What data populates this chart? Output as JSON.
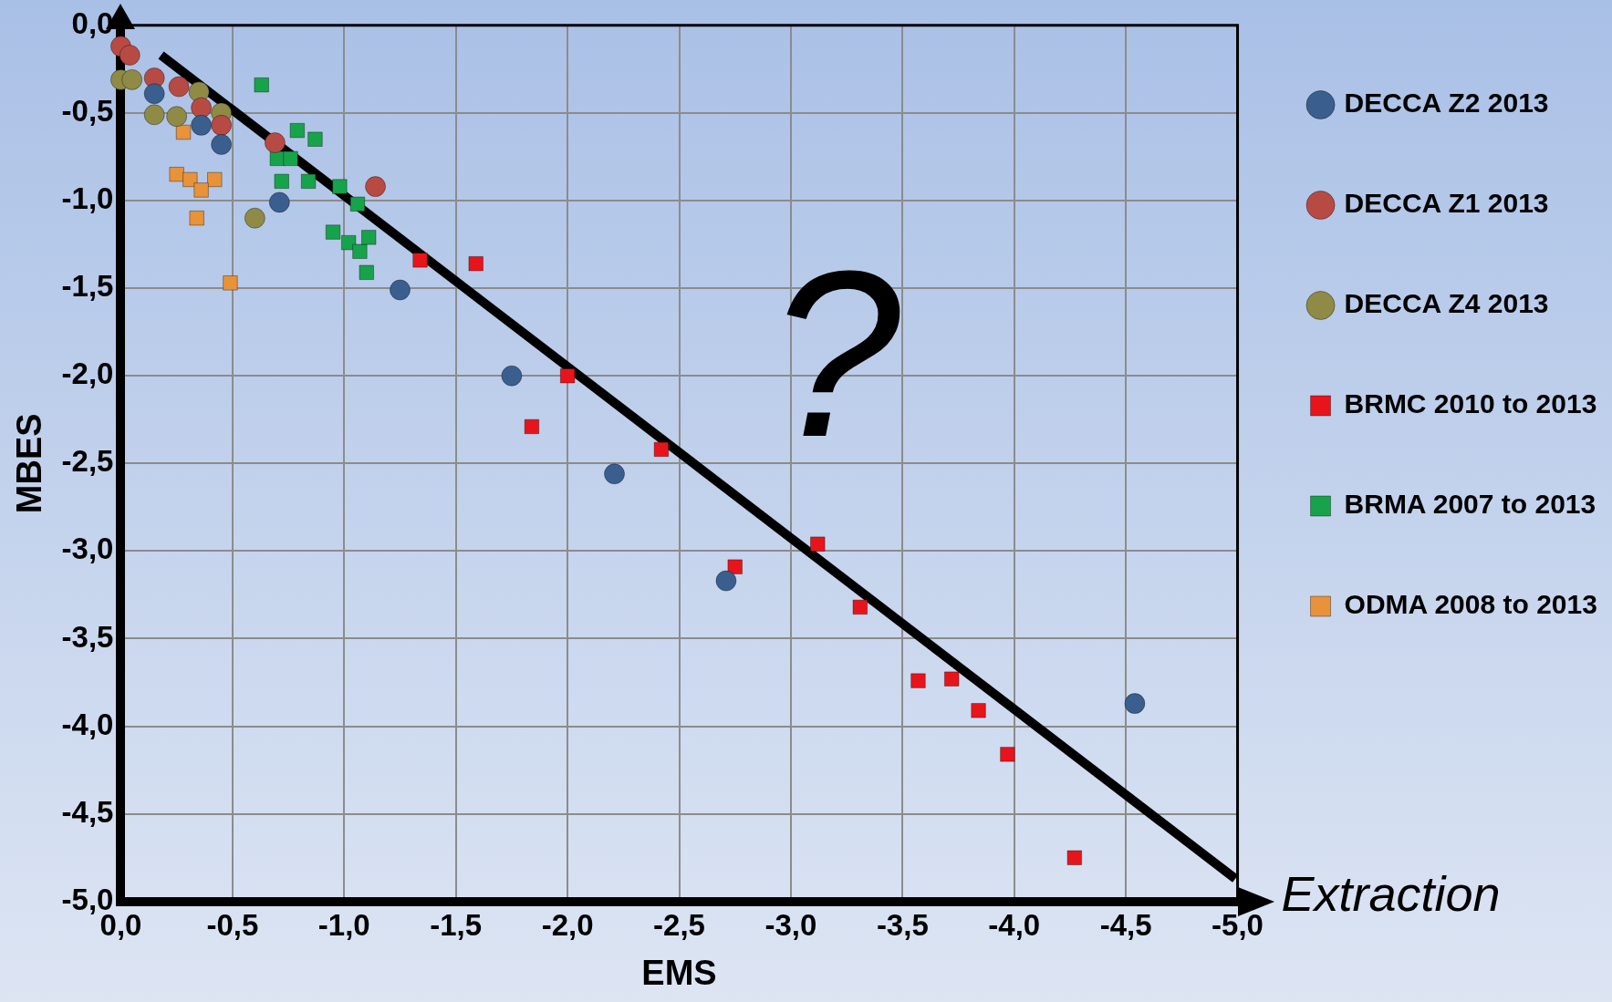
{
  "chart_data": {
    "type": "scatter",
    "xlabel": "EMS",
    "ylabel": "MBES",
    "annotations": [
      "Extraction",
      "?"
    ],
    "xlim": [
      0,
      -5
    ],
    "ylim": [
      -5,
      0
    ],
    "xticks": [
      {
        "value": 0,
        "label": "0,0"
      },
      {
        "value": -0.5,
        "label": "-0,5"
      },
      {
        "value": -1,
        "label": "-1,0"
      },
      {
        "value": -1.5,
        "label": "-1,5"
      },
      {
        "value": -2,
        "label": "-2,0"
      },
      {
        "value": -2.5,
        "label": "-2,5"
      },
      {
        "value": -3,
        "label": "-3,0"
      },
      {
        "value": -3.5,
        "label": "-3,5"
      },
      {
        "value": -4,
        "label": "-4,0"
      },
      {
        "value": -4.5,
        "label": "-4,5"
      },
      {
        "value": -5,
        "label": "-5,0"
      }
    ],
    "yticks": [
      {
        "value": 0,
        "label": "0,0"
      },
      {
        "value": -0.5,
        "label": "-0,5"
      },
      {
        "value": -1,
        "label": "-1,0"
      },
      {
        "value": -1.5,
        "label": "-1,5"
      },
      {
        "value": -2,
        "label": "-2,0"
      },
      {
        "value": -2.5,
        "label": "-2,5"
      },
      {
        "value": -3,
        "label": "-3,0"
      },
      {
        "value": -3.5,
        "label": "-3,5"
      },
      {
        "value": -4,
        "label": "-4,0"
      },
      {
        "value": -4.5,
        "label": "-4,5"
      },
      {
        "value": -5,
        "label": "-5,0"
      }
    ],
    "grid": true,
    "legend": "right",
    "series": [
      {
        "name": "DECCA Z2 2013",
        "color": "#3a5f8f",
        "marker": "circle",
        "x": [
          -0.15,
          -0.36,
          -0.45,
          -0.71,
          -1.25,
          -1.75,
          -2.21,
          -2.71,
          -4.54
        ],
        "values": [
          -0.39,
          -0.57,
          -0.68,
          -1.01,
          -1.51,
          -2.0,
          -2.56,
          -3.17,
          -3.87
        ]
      },
      {
        "name": "DECCA Z1 2013",
        "color": "#b84a44",
        "marker": "circle",
        "x": [
          0,
          -0.04,
          -0.15,
          -0.26,
          -0.36,
          -0.45,
          -0.69,
          -1.14
        ],
        "values": [
          -0.12,
          -0.17,
          -0.3,
          -0.35,
          -0.47,
          -0.57,
          -0.67,
          -0.92
        ]
      },
      {
        "name": "DECCA Z4 2013",
        "color": "#8f8a45",
        "marker": "circle",
        "x": [
          0,
          -0.05,
          -0.15,
          -0.25,
          -0.35,
          -0.45,
          -0.6
        ],
        "values": [
          -0.31,
          -0.31,
          -0.51,
          -0.52,
          -0.38,
          -0.5,
          -1.1
        ]
      },
      {
        "name": "BRMC 2010 to 2013",
        "color": "#e8141c",
        "marker": "square",
        "x": [
          -1.34,
          -1.59,
          -2.0,
          -1.84,
          -2.42,
          -2.75,
          -3.12,
          -3.31,
          -3.57,
          -3.72,
          -3.84,
          -3.97,
          -4.27
        ],
        "values": [
          -1.34,
          -1.36,
          -2.0,
          -2.29,
          -2.42,
          -3.09,
          -2.96,
          -3.32,
          -3.74,
          -3.73,
          -3.91,
          -4.16,
          -4.75
        ]
      },
      {
        "name": "BRMA 2007 to 2013",
        "color": "#16a34a",
        "marker": "square",
        "x": [
          -0.63,
          -0.79,
          -0.87,
          -0.7,
          -0.76,
          -0.72,
          -0.84,
          -0.98,
          -1.06,
          -0.95,
          -1.02,
          -1.07,
          -1.11,
          -1.1
        ],
        "values": [
          -0.34,
          -0.6,
          -0.65,
          -0.76,
          -0.76,
          -0.89,
          -0.89,
          -0.92,
          -1.02,
          -1.18,
          -1.24,
          -1.29,
          -1.21,
          -1.41
        ]
      },
      {
        "name": "ODMA 2008 to 2013",
        "color": "#e8923a",
        "marker": "square",
        "x": [
          -0.28,
          -0.25,
          -0.31,
          -0.42,
          -0.36,
          -0.34,
          -0.49
        ],
        "values": [
          -0.61,
          -0.85,
          -0.88,
          -0.88,
          -0.94,
          -1.1,
          -1.47
        ]
      },
      {
        "type": "line",
        "color": "#000000",
        "marker": "none",
        "line_style": "solid",
        "x": [
          -0.18,
          -4.99
        ],
        "values": [
          -0.17,
          -4.87
        ]
      }
    ]
  }
}
